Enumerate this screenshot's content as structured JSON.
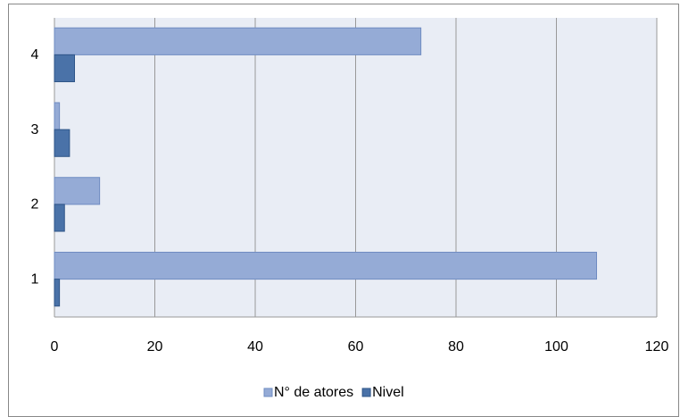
{
  "chart_data": {
    "type": "hbar",
    "categories": [
      "1",
      "2",
      "3",
      "4"
    ],
    "series": [
      {
        "name": "N° de atores",
        "color": "#95abd6",
        "values": [
          108,
          9,
          1,
          73
        ]
      },
      {
        "name": "Nivel",
        "color": "#4a72a8",
        "values": [
          1,
          2,
          3,
          4
        ]
      }
    ],
    "xlim": [
      0,
      120
    ],
    "xticks": [
      0,
      20,
      40,
      60,
      80,
      100,
      120
    ],
    "grid": true,
    "legend": "bottom"
  }
}
